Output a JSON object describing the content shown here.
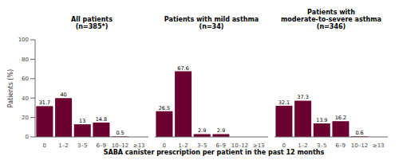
{
  "chart_data": [
    {
      "type": "bar",
      "title": "All patients\n(n=385*)",
      "categories": [
        "0",
        "1–2",
        "3–5",
        "6–9",
        "10–12",
        "≥13"
      ],
      "values": [
        31.7,
        40.0,
        13.0,
        14.8,
        0.5,
        0.0
      ],
      "color": "#6b0030",
      "ylabel": "Patients (%)",
      "ylim": [
        0,
        100
      ],
      "yticks": [
        0,
        20,
        40,
        60,
        80,
        100
      ],
      "data_labels": true
    },
    {
      "type": "bar",
      "title": "Patients with mild asthma\n(n=34)",
      "categories": [
        "0",
        "1–2",
        "3–5",
        "6–9",
        "10–12",
        "≥13"
      ],
      "values": [
        26.5,
        67.6,
        2.9,
        2.9,
        0.0,
        0.0
      ],
      "color": "#6b0030",
      "xlabel": "SABA canister prescription per patient in the past 12 months",
      "ylim": [
        0,
        100
      ],
      "data_labels": true,
      "tick_labels": "x"
    },
    {
      "type": "bar",
      "title": "Patients with\nmoderate-to-severe asthma\n(n=346)",
      "categories": [
        "0",
        "1–2",
        "3–5",
        "6–9",
        "10–12",
        "≥13"
      ],
      "values": [
        32.1,
        37.3,
        13.9,
        16.2,
        0.6,
        0.0
      ],
      "color": "#6b0030",
      "ylim": [
        0,
        100
      ],
      "data_labels": true,
      "tick_labels": "x"
    }
  ]
}
